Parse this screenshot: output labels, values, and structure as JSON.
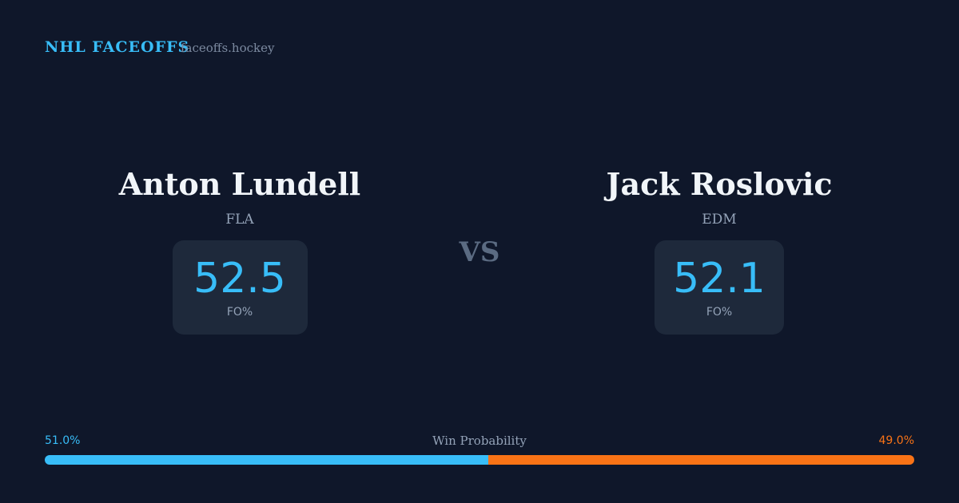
{
  "header": {
    "brand": "NHL FACEOFFS",
    "site": "faceoffs.hockey"
  },
  "players": [
    {
      "name": "Anton Lundell",
      "team": "FLA",
      "value": 52.5,
      "stat": "FO%"
    },
    {
      "name": "Jack Roslovic",
      "team": "EDM",
      "value": 52.1,
      "stat": "FO%"
    }
  ],
  "vs": "VS",
  "probability": {
    "title": "Win Probability",
    "left": {
      "value": 51,
      "label": "51.0%"
    },
    "right": {
      "value": 49,
      "label": "49.0%"
    }
  }
}
